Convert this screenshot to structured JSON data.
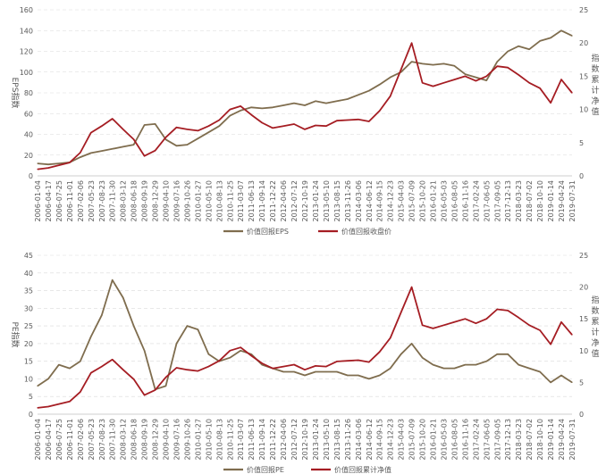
{
  "chart_data": [
    {
      "type": "line",
      "title": "",
      "categories": [
        "2006-01-04",
        "2006-04-17",
        "2006-07-25",
        "2006-11-01",
        "2007-02-06",
        "2007-05-23",
        "2007-08-23",
        "2007-11-30",
        "2008-03-12",
        "2008-06-18",
        "2008-09-19",
        "2008-12-29",
        "2009-04-10",
        "2009-07-16",
        "2009-10-26",
        "2010-01-27",
        "2010-05-10",
        "2010-08-13",
        "2010-11-25",
        "2011-03-07",
        "2011-06-13",
        "2011-09-14",
        "2011-12-22",
        "2012-04-06",
        "2012-07-12",
        "2012-10-19",
        "2013-01-24",
        "2013-05-10",
        "2013-08-15",
        "2013-11-26",
        "2014-03-06",
        "2014-06-12",
        "2014-09-15",
        "2014-12-23",
        "2015-04-03",
        "2015-07-09",
        "2015-10-20",
        "2016-01-21",
        "2016-05-03",
        "2016-08-05",
        "2016-11-16",
        "2017-02-24",
        "2017-06-05",
        "2017-09-05",
        "2017-12-13",
        "2018-03-23",
        "2018-07-02",
        "2018-10-10",
        "2019-01-14",
        "2019-04-24",
        "2019-07-31"
      ],
      "ylabel": "EPS指数",
      "y2label": "指数累计净值",
      "ylim": [
        0,
        160
      ],
      "yticks": [
        0,
        20,
        40,
        60,
        80,
        100,
        120,
        140,
        160
      ],
      "y2lim": [
        0,
        25
      ],
      "y2ticks": [
        0,
        5,
        10,
        15,
        20,
        25
      ],
      "legend_position": "bottom",
      "grid": true,
      "series": [
        {
          "name": "价值回报EPS",
          "axis": "left",
          "color": "#7f6d4e",
          "values": [
            12,
            11,
            12,
            13,
            18,
            22,
            24,
            26,
            28,
            30,
            49,
            50,
            35,
            29,
            30,
            36,
            42,
            48,
            58,
            63,
            66,
            65,
            66,
            68,
            70,
            68,
            72,
            70,
            72,
            74,
            78,
            82,
            88,
            95,
            100,
            110,
            108,
            107,
            108,
            106,
            98,
            95,
            92,
            110,
            120,
            125,
            122,
            130,
            133,
            140,
            135
          ]
        },
        {
          "name": "价值回报收盘价",
          "axis": "right",
          "color": "#a51d23",
          "values": [
            1.0,
            1.2,
            1.6,
            2.0,
            3.5,
            6.5,
            7.5,
            8.6,
            7.0,
            5.5,
            3.0,
            3.8,
            5.8,
            7.3,
            7.0,
            6.8,
            7.5,
            8.4,
            10.0,
            10.5,
            9.2,
            8.0,
            7.2,
            7.5,
            7.8,
            7.0,
            7.6,
            7.5,
            8.3,
            8.4,
            8.5,
            8.2,
            9.8,
            12.0,
            16.0,
            20.0,
            14.0,
            13.5,
            14.0,
            14.5,
            15.0,
            14.3,
            15.0,
            16.5,
            16.3,
            15.2,
            14.0,
            13.2,
            11.0,
            14.5,
            12.5
          ]
        }
      ]
    },
    {
      "type": "line",
      "title": "",
      "categories": [
        "2006-01-04",
        "2006-04-17",
        "2006-07-25",
        "2006-11-01",
        "2007-02-06",
        "2007-05-23",
        "2007-08-23",
        "2007-11-30",
        "2008-03-12",
        "2008-06-18",
        "2008-09-19",
        "2008-12-29",
        "2009-04-10",
        "2009-07-16",
        "2009-10-26",
        "2010-01-27",
        "2010-05-10",
        "2010-08-13",
        "2010-11-25",
        "2011-03-07",
        "2011-06-13",
        "2011-09-14",
        "2011-12-22",
        "2012-04-06",
        "2012-07-12",
        "2012-10-19",
        "2013-01-24",
        "2013-05-10",
        "2013-08-15",
        "2013-11-26",
        "2014-03-06",
        "2014-06-12",
        "2014-09-15",
        "2014-12-23",
        "2015-04-03",
        "2015-07-09",
        "2015-10-20",
        "2016-01-21",
        "2016-05-03",
        "2016-08-05",
        "2016-11-16",
        "2017-02-24",
        "2017-06-05",
        "2017-09-05",
        "2017-12-13",
        "2018-03-23",
        "2018-07-02",
        "2018-10-10",
        "2019-01-14",
        "2019-04-24",
        "2019-07-31"
      ],
      "ylabel": "PE指数",
      "y2label": "指数累计净值",
      "ylim": [
        0,
        45
      ],
      "yticks": [
        0,
        5,
        10,
        15,
        20,
        25,
        30,
        35,
        40,
        45
      ],
      "y2lim": [
        0,
        25
      ],
      "y2ticks": [
        0,
        5,
        10,
        15,
        20,
        25
      ],
      "legend_position": "bottom",
      "grid": true,
      "series": [
        {
          "name": "价值回报PE",
          "axis": "left",
          "color": "#7f6d4e",
          "values": [
            8,
            10,
            14,
            13,
            15,
            22,
            28,
            38,
            33,
            25,
            18,
            7,
            8,
            20,
            25,
            24,
            17,
            15,
            16,
            18,
            17,
            14,
            13,
            12,
            12,
            11,
            12,
            12,
            12,
            11,
            11,
            10,
            11,
            13,
            17,
            20,
            16,
            14,
            13,
            13,
            14,
            14,
            15,
            17,
            17,
            14,
            13,
            12,
            9,
            11,
            9
          ]
        },
        {
          "name": "价值回报累计净值",
          "axis": "right",
          "color": "#a51d23",
          "values": [
            1.0,
            1.2,
            1.6,
            2.0,
            3.5,
            6.5,
            7.5,
            8.6,
            7.0,
            5.5,
            3.0,
            3.8,
            5.8,
            7.3,
            7.0,
            6.8,
            7.5,
            8.4,
            10.0,
            10.5,
            9.2,
            8.0,
            7.2,
            7.5,
            7.8,
            7.0,
            7.6,
            7.5,
            8.3,
            8.4,
            8.5,
            8.2,
            9.8,
            12.0,
            16.0,
            20.0,
            14.0,
            13.5,
            14.0,
            14.5,
            15.0,
            14.3,
            15.0,
            16.5,
            16.3,
            15.2,
            14.0,
            13.2,
            11.0,
            14.5,
            12.5
          ]
        }
      ]
    }
  ]
}
